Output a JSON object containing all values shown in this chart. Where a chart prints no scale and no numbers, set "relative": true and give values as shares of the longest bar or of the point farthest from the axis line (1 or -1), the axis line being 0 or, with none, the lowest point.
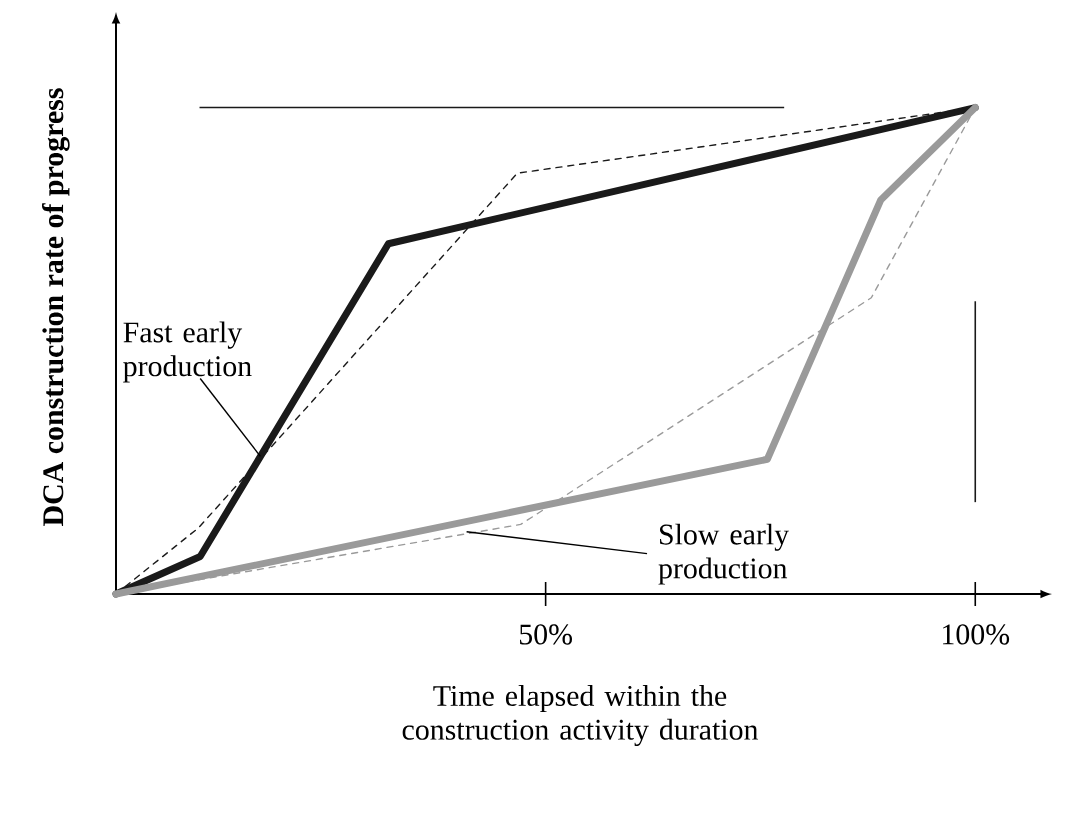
{
  "chart_data": {
    "type": "line",
    "relative": true,
    "xlabel": "Time elapsed within the construction activity duration",
    "ylabel": "DCA construction rate of progress",
    "xlim": [
      0,
      108
    ],
    "xticks": [
      {
        "value": 50,
        "label": "50%"
      },
      {
        "value": 100,
        "label": "100%"
      }
    ],
    "tick_labels": "x",
    "grid": false,
    "marker": "none",
    "series": [
      {
        "color": "#1a1a1a",
        "line_style": "solid",
        "x": [
          0,
          9.8,
          31.7,
          100
        ],
        "values": [
          0,
          0.077,
          0.72,
          1
        ]
      },
      {
        "color": "#1a1a1a",
        "line_style": "dashed",
        "x": [
          0,
          9.6,
          46.7,
          100
        ],
        "values": [
          0,
          0.136,
          0.865,
          1
        ]
      },
      {
        "color": "#9a9a9a",
        "line_style": "solid",
        "x": [
          0,
          75.8,
          89,
          100
        ],
        "values": [
          0,
          0.277,
          0.81,
          1
        ]
      },
      {
        "color": "#9a9a9a",
        "line_style": "dashed",
        "x": [
          0,
          47.1,
          87.9,
          100
        ],
        "values": [
          0,
          0.143,
          0.609,
          1
        ]
      }
    ],
    "annotations": [
      {
        "text": "Fast early production",
        "x": 16.8,
        "y": 0.283
      },
      {
        "text": "Slow early production",
        "x": 40.8,
        "y": 0.128
      }
    ],
    "ref_lines": [
      {
        "axis": "y",
        "value": 1,
        "color": "#1a1a1a"
      },
      {
        "axis": "x",
        "value": 100,
        "color": "#1a1a1a"
      }
    ]
  }
}
